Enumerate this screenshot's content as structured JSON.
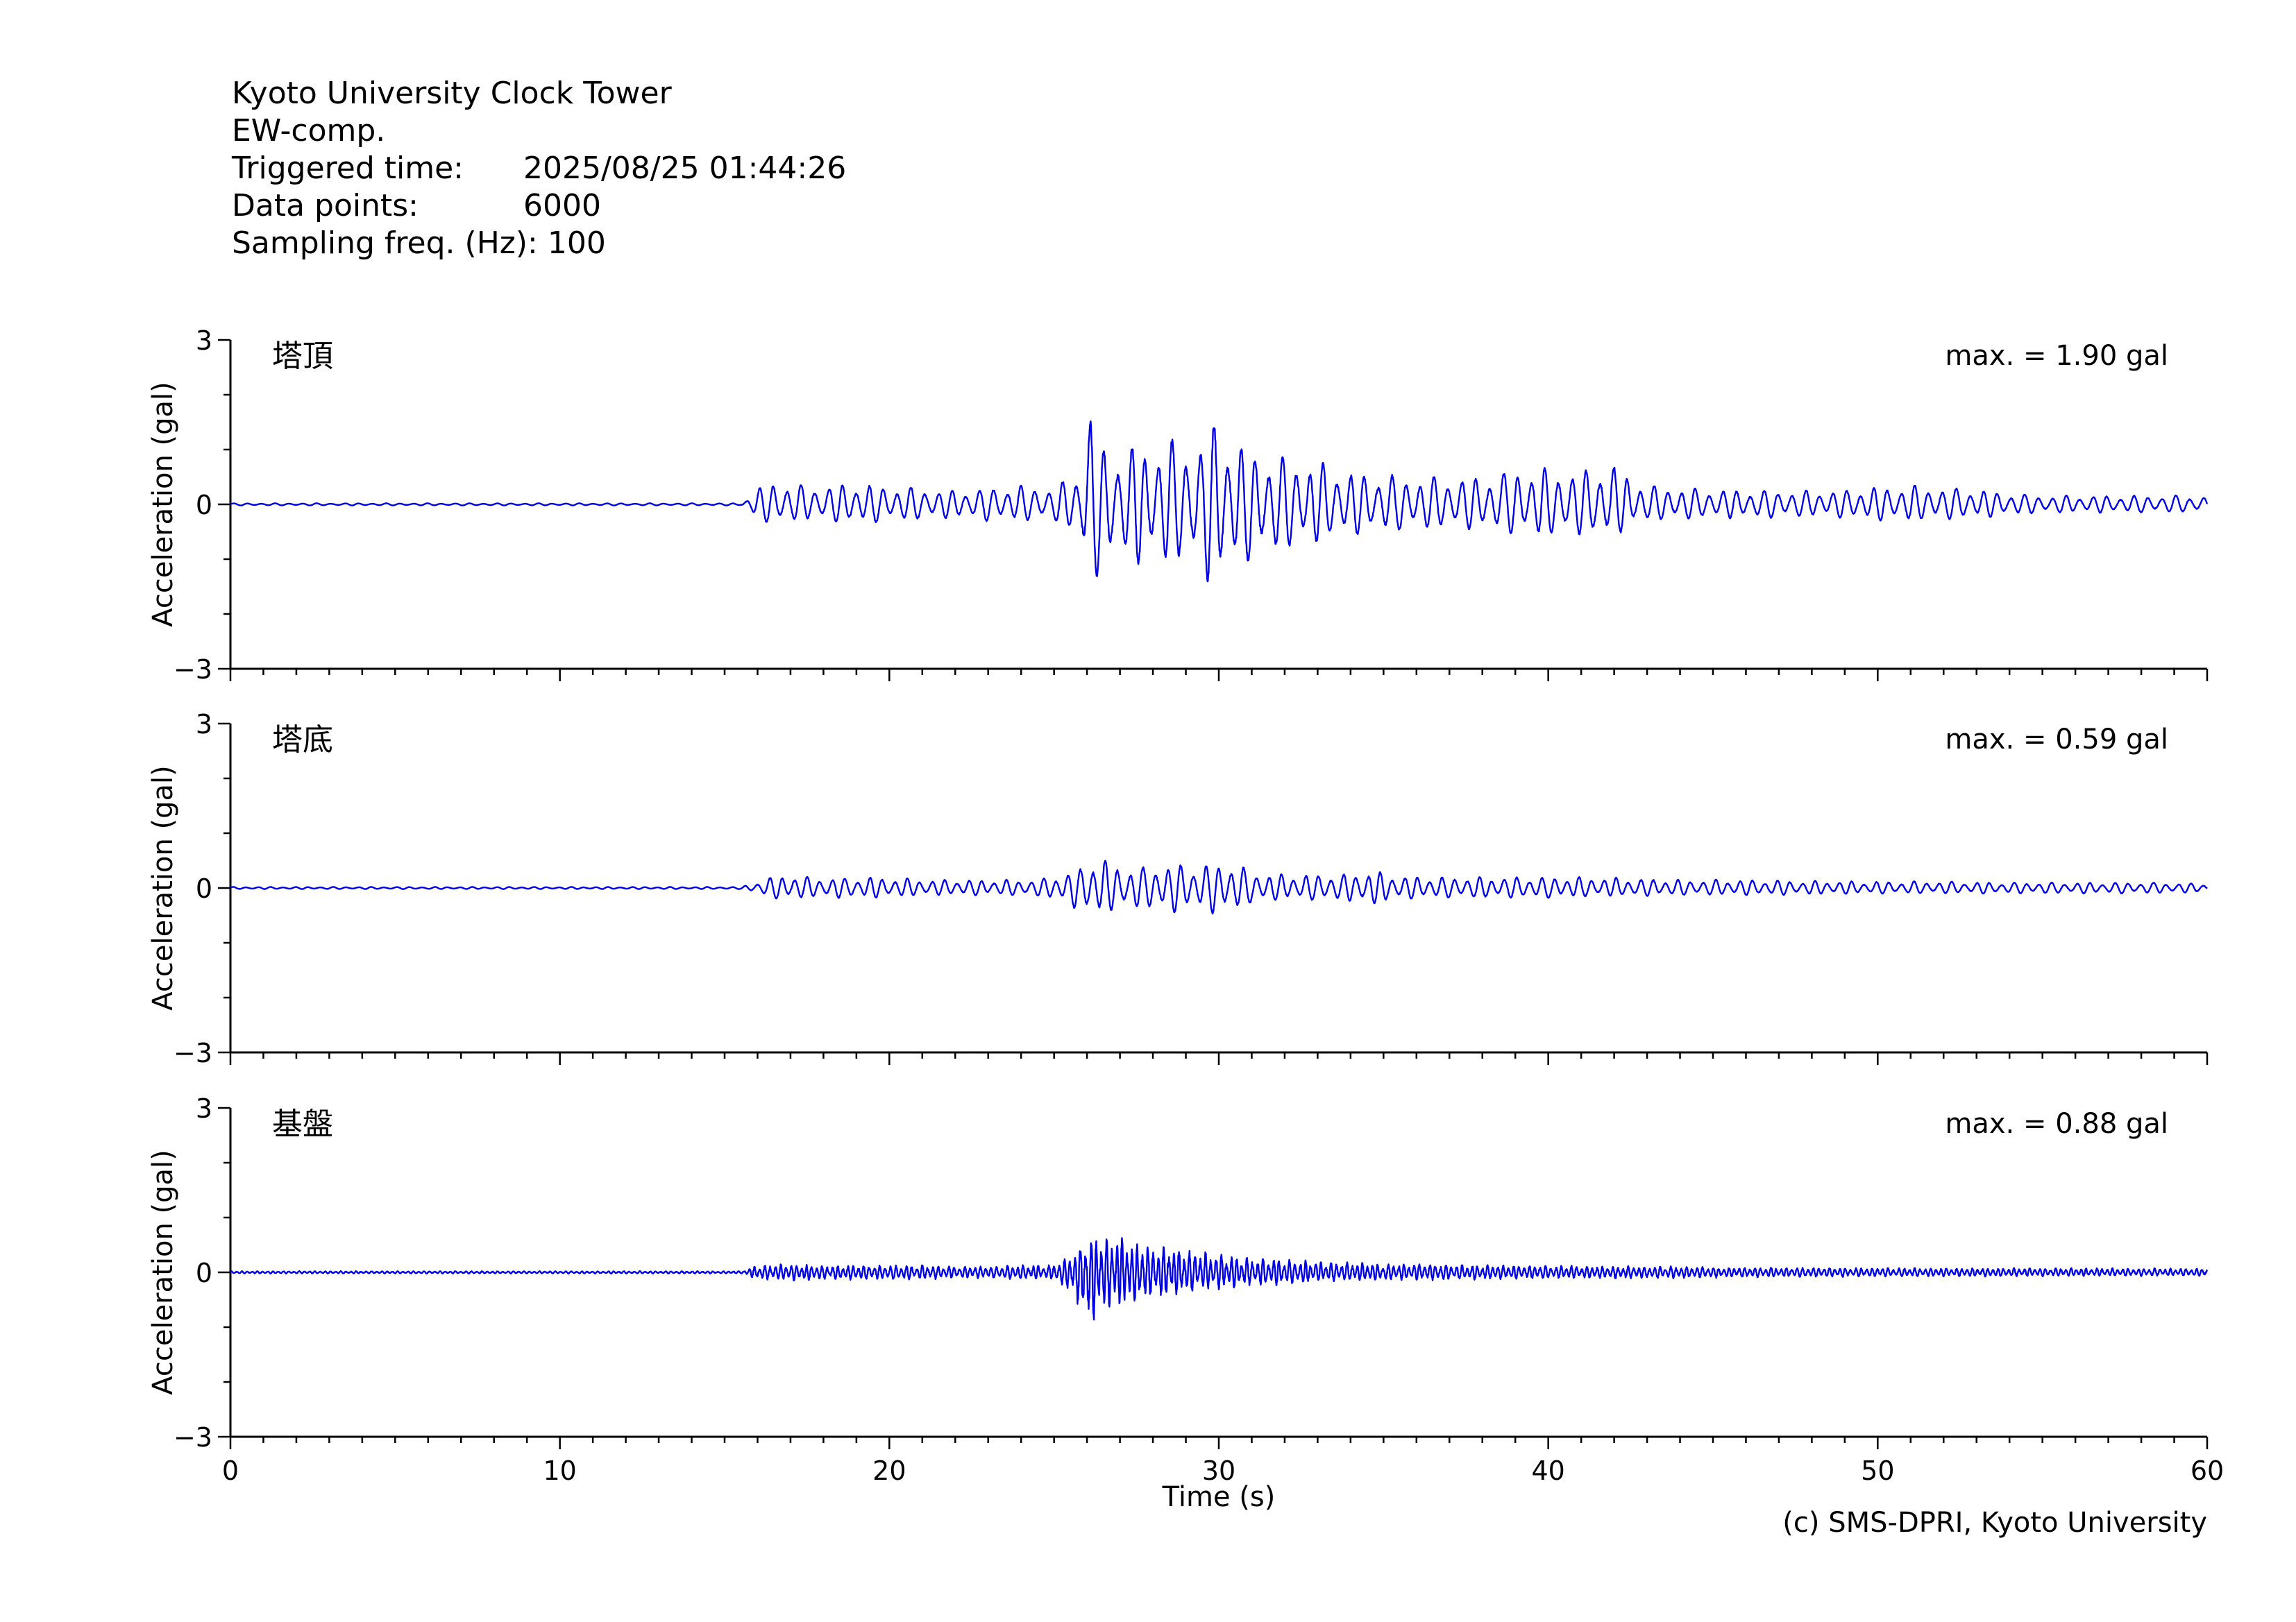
{
  "header": {
    "station": "Kyoto University Clock Tower",
    "component": "EW-comp.",
    "triggered_label": "Triggered time:",
    "triggered_value": "2025/08/25 01:44:26",
    "points_label": "Data points:",
    "points_value": "6000",
    "freq_label": "Sampling freq. (Hz):",
    "freq_value": "100"
  },
  "copyright": "(c) SMS-DPRI, Kyoto University",
  "line_color": "#0000e6",
  "chart_data": [
    {
      "type": "line",
      "title": "塔頂",
      "annotation": "max. = 1.90 gal",
      "ylabel": "Acceleration (gal)",
      "xlabel": "",
      "xlim": [
        0,
        60
      ],
      "ylim": [
        -3,
        3
      ],
      "yticks": [
        -3,
        0,
        3
      ],
      "ytick_labels": [
        "−3",
        "0",
        "3"
      ],
      "xticks": [
        0,
        10,
        20,
        30,
        40,
        50,
        60
      ],
      "xtick_labels": [],
      "series": [
        {
          "x": [
            0,
            15.5,
            16.0,
            16.5,
            17.0,
            18.0,
            19.0,
            20.0,
            21.0,
            22.0,
            23.0,
            24.0,
            25.0,
            25.8,
            26.1,
            26.3,
            26.5,
            27.0,
            27.5,
            28.0,
            28.5,
            29.0,
            29.5,
            29.8,
            30.0,
            30.5,
            31.0,
            31.5,
            32.0,
            33.0,
            34.0,
            35.0,
            36.0,
            37.0,
            38.0,
            39.0,
            40.0,
            41.0,
            41.9,
            42.5,
            43.0,
            44.0,
            45.0,
            46.0,
            47.0,
            48.0,
            49.0,
            50.0,
            51.0,
            52.0,
            53.0,
            54.0,
            55.0,
            56.0,
            57.0,
            58.0,
            59.0,
            60.0
          ],
          "y": [
            0.02,
            0.02,
            0.28,
            0.45,
            0.35,
            0.35,
            0.38,
            0.33,
            0.3,
            0.25,
            0.3,
            0.35,
            0.3,
            0.65,
            1.9,
            1.3,
            1.1,
            1.0,
            1.1,
            1.1,
            1.15,
            1.15,
            1.2,
            1.55,
            1.45,
            1.15,
            1.0,
            0.9,
            0.85,
            0.8,
            0.6,
            0.55,
            0.5,
            0.5,
            0.5,
            0.65,
            0.65,
            0.6,
            0.8,
            0.5,
            0.35,
            0.3,
            0.28,
            0.26,
            0.25,
            0.25,
            0.26,
            0.32,
            0.35,
            0.3,
            0.28,
            0.2,
            0.16,
            0.16,
            0.16,
            0.16,
            0.16,
            0.15
          ],
          "y_lower": [
            0.02,
            0.02,
            0.25,
            0.4,
            0.3,
            0.3,
            0.35,
            0.3,
            0.28,
            0.25,
            0.3,
            0.3,
            0.3,
            0.6,
            1.85,
            1.3,
            1.1,
            1.0,
            1.1,
            1.05,
            1.1,
            1.05,
            1.2,
            1.6,
            1.4,
            1.15,
            1.0,
            0.9,
            0.85,
            0.7,
            0.55,
            0.5,
            0.45,
            0.45,
            0.45,
            0.55,
            0.6,
            0.55,
            0.6,
            0.4,
            0.3,
            0.28,
            0.25,
            0.25,
            0.25,
            0.22,
            0.25,
            0.3,
            0.3,
            0.28,
            0.25,
            0.2,
            0.16,
            0.15,
            0.15,
            0.15,
            0.15,
            0.15
          ]
        }
      ]
    },
    {
      "type": "line",
      "title": "塔底",
      "annotation": "max. = 0.59 gal",
      "ylabel": "Acceleration (gal)",
      "xlabel": "",
      "xlim": [
        0,
        60
      ],
      "ylim": [
        -3,
        3
      ],
      "yticks": [
        -3,
        0,
        3
      ],
      "ytick_labels": [
        "−3",
        "0",
        "3"
      ],
      "xticks": [
        0,
        10,
        20,
        30,
        40,
        50,
        60
      ],
      "xtick_labels": [],
      "series": [
        {
          "x": [
            0,
            15.5,
            16.0,
            16.7,
            17.5,
            18.5,
            19.5,
            20.5,
            21.5,
            22.5,
            23.5,
            24.5,
            25.3,
            25.9,
            26.3,
            26.8,
            27.5,
            28.0,
            28.7,
            29.2,
            29.9,
            30.5,
            31.0,
            32.0,
            33.0,
            34.0,
            34.6,
            35.5,
            36.5,
            37.5,
            38.5,
            39.5,
            40.5,
            41.5,
            42.5,
            44.0,
            46.0,
            48.0,
            50.0,
            52.0,
            54.0,
            56.0,
            58.0,
            60.0
          ],
          "y": [
            0.02,
            0.02,
            0.12,
            0.25,
            0.2,
            0.18,
            0.2,
            0.18,
            0.15,
            0.15,
            0.15,
            0.15,
            0.25,
            0.4,
            0.59,
            0.45,
            0.35,
            0.4,
            0.45,
            0.4,
            0.45,
            0.45,
            0.3,
            0.25,
            0.25,
            0.25,
            0.32,
            0.22,
            0.2,
            0.2,
            0.2,
            0.2,
            0.2,
            0.2,
            0.18,
            0.15,
            0.15,
            0.13,
            0.12,
            0.12,
            0.1,
            0.1,
            0.1,
            0.08
          ],
          "y_lower": [
            0.02,
            0.02,
            0.1,
            0.22,
            0.18,
            0.18,
            0.18,
            0.15,
            0.13,
            0.13,
            0.13,
            0.15,
            0.25,
            0.45,
            0.5,
            0.4,
            0.38,
            0.4,
            0.45,
            0.35,
            0.48,
            0.4,
            0.28,
            0.2,
            0.22,
            0.25,
            0.32,
            0.2,
            0.18,
            0.18,
            0.18,
            0.18,
            0.18,
            0.15,
            0.15,
            0.13,
            0.13,
            0.12,
            0.1,
            0.1,
            0.1,
            0.1,
            0.1,
            0.08
          ]
        }
      ]
    },
    {
      "type": "line",
      "title": "基盤",
      "annotation": "max. = 0.88 gal",
      "ylabel": "Acceleration (gal)",
      "xlabel": "Time (s)",
      "xlim": [
        0,
        60
      ],
      "ylim": [
        -3,
        3
      ],
      "yticks": [
        -3,
        0,
        3
      ],
      "ytick_labels": [
        "−3",
        "0",
        "3"
      ],
      "xticks": [
        0,
        10,
        20,
        30,
        40,
        50,
        60
      ],
      "xtick_labels": [
        "0",
        "10",
        "20",
        "30",
        "40",
        "50",
        "60"
      ],
      "series": [
        {
          "x": [
            0,
            15.5,
            16.0,
            17.0,
            18.0,
            19.0,
            20.0,
            21.0,
            22.0,
            23.0,
            24.0,
            25.0,
            25.6,
            26.0,
            26.5,
            27.0,
            27.5,
            28.0,
            28.5,
            29.0,
            29.5,
            30.0,
            31.0,
            32.0,
            33.0,
            34.0,
            35.0,
            36.0,
            38.0,
            40.0,
            42.0,
            44.0,
            46.0,
            48.0,
            50.0,
            52.0,
            54.0,
            56.0,
            58.0,
            60.0
          ],
          "y": [
            0.02,
            0.02,
            0.12,
            0.14,
            0.12,
            0.12,
            0.12,
            0.12,
            0.1,
            0.1,
            0.12,
            0.12,
            0.3,
            0.55,
            0.65,
            0.6,
            0.5,
            0.45,
            0.4,
            0.38,
            0.35,
            0.3,
            0.25,
            0.22,
            0.18,
            0.17,
            0.15,
            0.15,
            0.12,
            0.12,
            0.1,
            0.1,
            0.08,
            0.08,
            0.08,
            0.07,
            0.07,
            0.07,
            0.07,
            0.06
          ],
          "y_lower": [
            0.02,
            0.02,
            0.12,
            0.14,
            0.12,
            0.12,
            0.12,
            0.12,
            0.1,
            0.1,
            0.12,
            0.12,
            0.4,
            0.88,
            0.6,
            0.55,
            0.55,
            0.4,
            0.45,
            0.35,
            0.3,
            0.28,
            0.22,
            0.2,
            0.15,
            0.15,
            0.13,
            0.13,
            0.12,
            0.1,
            0.1,
            0.1,
            0.08,
            0.08,
            0.07,
            0.07,
            0.07,
            0.06,
            0.06,
            0.06
          ]
        }
      ]
    }
  ]
}
